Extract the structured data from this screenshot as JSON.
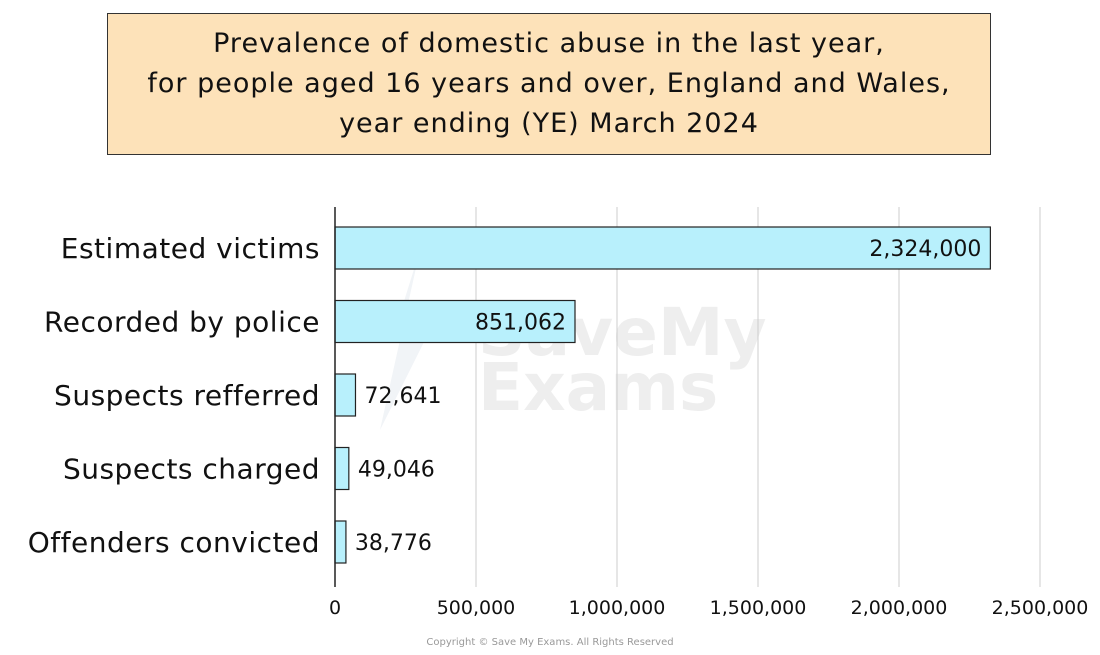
{
  "chart_data": {
    "type": "bar",
    "orientation": "horizontal",
    "title_lines": [
      "Prevalence of domestic abuse  in the last year,",
      "for people aged 16 years and over, England and Wales,",
      "year ending (YE) March 2024"
    ],
    "categories": [
      "Estimated victims",
      "Recorded by police",
      "Suspects refferred",
      "Suspects charged",
      "Offenders convicted"
    ],
    "values": [
      2324000,
      851062,
      72641,
      49046,
      38776
    ],
    "value_labels": [
      "2,324,000",
      "851,062",
      "72,641",
      "49,046",
      "38,776"
    ],
    "x_ticks": [
      0,
      500000,
      1000000,
      1500000,
      2000000,
      2500000
    ],
    "x_tick_labels": [
      "0",
      "500,000",
      "1,000,000",
      "1,500,000",
      "2,000,000",
      "2,500,000"
    ],
    "xlim": [
      0,
      2500000
    ],
    "grid": "vertical",
    "colors": {
      "bar": "#b8f0fc",
      "bar_stroke": "#222222",
      "grid": "#cccccc",
      "title_bg": "#fde2b9"
    }
  },
  "watermark": {
    "line1": "SaveMy",
    "line2": "Exams"
  },
  "copyright": "Copyright © Save My Exams. All Rights Reserved"
}
